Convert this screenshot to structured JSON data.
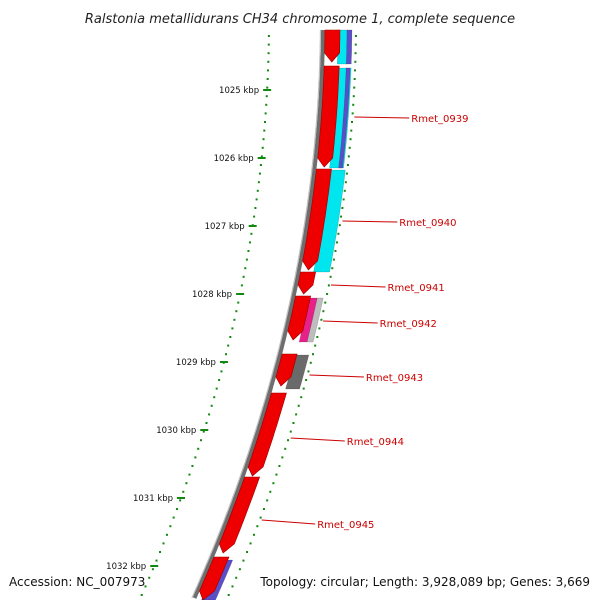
{
  "title": "Ralstonia metallidurans CH34 chromosome 1, complete sequence",
  "footer": {
    "accession": "Accession: NC_007973",
    "summary": "Topology: circular; Length: 3,928,089 bp; Genes: 3,669"
  },
  "colors": {
    "backbone": "#6e6e6e",
    "forward_cds": "#ee0000",
    "reverse_track": "#00e5ee",
    "blue_track": "#5a4fc8",
    "pink_feature": "#e8208a",
    "gray_feature": "#6a6a6a",
    "label_red": "#cc0000",
    "tick_green": "#118811"
  },
  "scale_ticks": [
    "1025 kbp",
    "1026 kbp",
    "1027 kbp",
    "1028 kbp",
    "1029 kbp",
    "1030 kbp",
    "1031 kbp",
    "1032 kbp"
  ],
  "gene_labels": [
    "Rmet_0939",
    "Rmet_0940",
    "Rmet_0941",
    "Rmet_0942",
    "Rmet_0943",
    "Rmet_0944",
    "Rmet_0945"
  ]
}
